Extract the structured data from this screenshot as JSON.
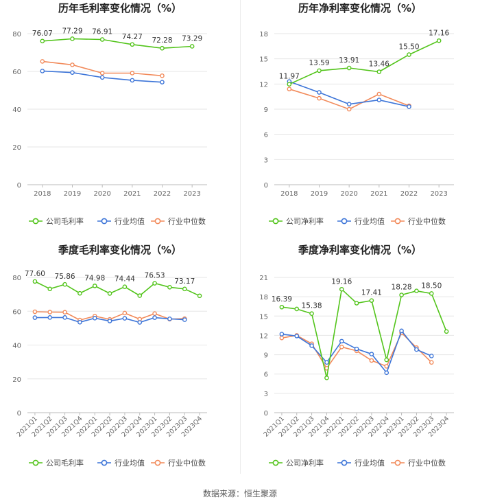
{
  "colors": {
    "company": "#52c41a",
    "industry_avg": "#3d75d8",
    "industry_median": "#f28a5a",
    "axis_text": "#666666",
    "grid": "#e6e6e6"
  },
  "legend_labels": {
    "gross_company": "公司毛利率",
    "net_company": "公司净利率",
    "industry_avg": "行业均值",
    "industry_median": "行业中位数"
  },
  "source": "数据来源：恒生聚源",
  "chart_data": [
    {
      "type": "line",
      "title": "历年毛利率变化情况（%）",
      "categories": [
        "2018",
        "2019",
        "2020",
        "2021",
        "2022",
        "2023"
      ],
      "ylim": [
        0,
        80
      ],
      "yticks": [
        0,
        20,
        40,
        60,
        80
      ],
      "label_series": 0,
      "series": [
        {
          "name": "公司毛利率",
          "color_key": "company",
          "values": [
            76.07,
            77.29,
            76.91,
            74.27,
            72.28,
            73.29
          ],
          "labels": [
            "76.07",
            "77.29",
            "76.91",
            "74.27",
            "72.28",
            "73.29"
          ]
        },
        {
          "name": "行业均值",
          "color_key": "industry_avg",
          "values": [
            60.2,
            59.4,
            56.8,
            55.3,
            54.3,
            null
          ]
        },
        {
          "name": "行业中位数",
          "color_key": "industry_median",
          "values": [
            65.3,
            63.5,
            59.1,
            59.1,
            57.7,
            null
          ]
        }
      ]
    },
    {
      "type": "line",
      "title": "历年净利率变化情况（%）",
      "categories": [
        "2018",
        "2019",
        "2020",
        "2021",
        "2022",
        "2023"
      ],
      "ylim": [
        0,
        18
      ],
      "yticks": [
        0,
        3,
        6,
        9,
        12,
        15,
        18
      ],
      "label_series": 0,
      "series": [
        {
          "name": "公司净利率",
          "color_key": "company",
          "values": [
            11.97,
            13.59,
            13.91,
            13.46,
            15.5,
            17.16
          ],
          "labels": [
            "11.97",
            "13.59",
            "13.91",
            "13.46",
            "15.50",
            "17.16"
          ]
        },
        {
          "name": "行业均值",
          "color_key": "industry_avg",
          "values": [
            12.3,
            11.0,
            9.6,
            10.1,
            9.3,
            null
          ]
        },
        {
          "name": "行业中位数",
          "color_key": "industry_median",
          "values": [
            11.4,
            10.3,
            9.0,
            10.8,
            9.4,
            null
          ]
        }
      ]
    },
    {
      "type": "line",
      "title": "季度毛利率变化情况（%）",
      "categories": [
        "2021Q1",
        "2021Q2",
        "2021Q3",
        "2021Q4",
        "2022Q1",
        "2022Q2",
        "2022Q3",
        "2022Q4",
        "2023Q1",
        "2023Q2",
        "2023Q3",
        "2023Q4"
      ],
      "ylim": [
        0,
        80
      ],
      "yticks": [
        0,
        20,
        40,
        60,
        80
      ],
      "label_series": 0,
      "series": [
        {
          "name": "公司毛利率",
          "color_key": "company",
          "values": [
            77.6,
            73.2,
            75.86,
            70.6,
            74.98,
            70.5,
            74.44,
            69.2,
            76.53,
            74.2,
            73.17,
            69.1
          ],
          "labels": [
            "77.60",
            "",
            "75.86",
            "",
            "74.98",
            "",
            "74.44",
            "",
            "76.53",
            "",
            "73.17",
            ""
          ]
        },
        {
          "name": "行业均值",
          "color_key": "industry_avg",
          "values": [
            56.2,
            56.3,
            56.3,
            53.5,
            55.9,
            54.2,
            55.8,
            53.4,
            56.2,
            55.5,
            55.0,
            null
          ]
        },
        {
          "name": "行业中位数",
          "color_key": "industry_median",
          "values": [
            59.7,
            59.5,
            59.4,
            54.8,
            57.1,
            55.2,
            58.9,
            55.3,
            58.6,
            55.3,
            55.6,
            null
          ]
        }
      ]
    },
    {
      "type": "line",
      "title": "季度净利率变化情况（%）",
      "categories": [
        "2021Q1",
        "2021Q2",
        "2021Q3",
        "2021Q4",
        "2022Q1",
        "2022Q2",
        "2022Q3",
        "2022Q4",
        "2023Q1",
        "2023Q2",
        "2023Q3",
        "2023Q4"
      ],
      "ylim": [
        0,
        21
      ],
      "yticks": [
        0,
        3,
        6,
        9,
        12,
        15,
        18,
        21
      ],
      "label_series": 0,
      "series": [
        {
          "name": "公司净利率",
          "color_key": "company",
          "values": [
            16.39,
            16.1,
            15.38,
            5.4,
            19.16,
            17.0,
            17.41,
            8.2,
            18.28,
            18.9,
            18.5,
            12.6
          ],
          "labels": [
            "16.39",
            "",
            "15.38",
            "",
            "19.16",
            "",
            "17.41",
            "",
            "18.28",
            "",
            "18.50",
            ""
          ]
        },
        {
          "name": "行业均值",
          "color_key": "industry_avg",
          "values": [
            12.2,
            11.9,
            10.4,
            7.8,
            11.1,
            9.9,
            9.1,
            6.2,
            12.7,
            9.8,
            8.8,
            null
          ]
        },
        {
          "name": "行业中位数",
          "color_key": "industry_median",
          "values": [
            11.6,
            12.0,
            10.7,
            6.9,
            10.2,
            9.6,
            8.1,
            7.2,
            12.4,
            10.1,
            7.8,
            null
          ]
        }
      ]
    }
  ]
}
